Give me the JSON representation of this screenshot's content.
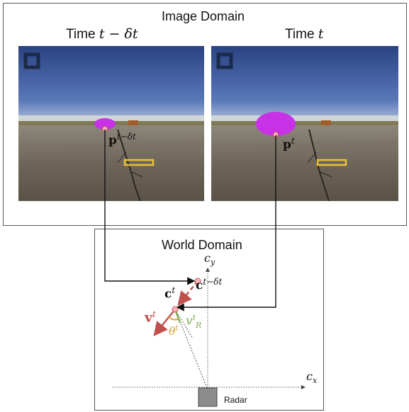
{
  "image_domain": {
    "title": "Image Domain",
    "left_time_label": "Time",
    "left_time_math": "t − δt",
    "right_time_label": "Time",
    "right_time_math": "t",
    "left_point_label": "p",
    "left_point_sup": "t−δt",
    "right_point_label": "p",
    "right_point_sup": "t"
  },
  "world_domain": {
    "title": "World Domain",
    "cy_label": "c",
    "cy_sub": "y",
    "cx_label": "c",
    "cx_sub": "x",
    "c_prev_label": "c",
    "c_prev_sup": "t−δt",
    "c_curr_label": "c",
    "c_curr_sup": "t",
    "v_label": "v",
    "v_sup": "t",
    "vr_label": "v",
    "vr_sup": "t",
    "vr_sub": "R",
    "theta_label": "θ",
    "theta_sup": "t",
    "radar_label": "Radar"
  },
  "colors": {
    "velocity_red": "#c0504d",
    "radial_green": "#7fae5a",
    "theta_gold": "#d4a640",
    "car_magenta": "#c832e6",
    "radar_gray": "#8c8c8c",
    "sky_blue": "#2f4d8f"
  }
}
